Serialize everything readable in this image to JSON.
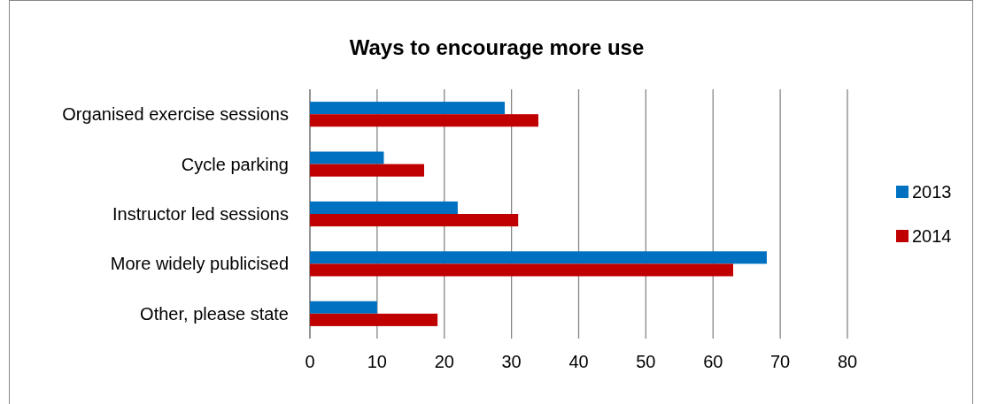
{
  "chart_data": {
    "type": "bar",
    "orientation": "horizontal",
    "title": "Ways to encourage more use",
    "categories": [
      "Organised exercise sessions",
      "Cycle parking",
      "Instructor led sessions",
      "More widely publicised",
      "Other, please state"
    ],
    "series": [
      {
        "name": "2013",
        "color": "#0070c0",
        "values": [
          29,
          11,
          22,
          68,
          10
        ]
      },
      {
        "name": "2014",
        "color": "#c00000",
        "values": [
          34,
          17,
          31,
          63,
          19
        ]
      }
    ],
    "xlim": [
      0,
      80
    ],
    "xticks": [
      0,
      10,
      20,
      30,
      40,
      50,
      60,
      70,
      80
    ],
    "grid": "x",
    "legend": "right"
  }
}
